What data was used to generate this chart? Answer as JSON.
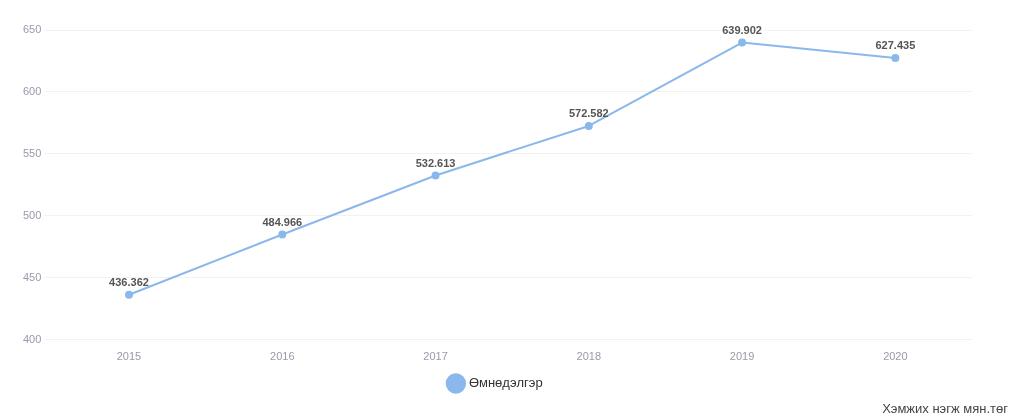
{
  "chart_data": {
    "type": "line",
    "categories": [
      "2015",
      "2016",
      "2017",
      "2018",
      "2019",
      "2020"
    ],
    "series": [
      {
        "name": "Өмнөдэлгэр",
        "color": "#8ab8ec",
        "values": [
          436.362,
          484.966,
          532.613,
          572.582,
          639.902,
          627.435
        ]
      }
    ],
    "ylim": [
      400,
      650
    ],
    "yticks": [
      400,
      450,
      500,
      550,
      600,
      650
    ],
    "grid": "y",
    "legend": "bottom",
    "marker": "circle",
    "data_labels": true,
    "annotations": [
      "Хэмжих нэгж мян.төг"
    ]
  }
}
